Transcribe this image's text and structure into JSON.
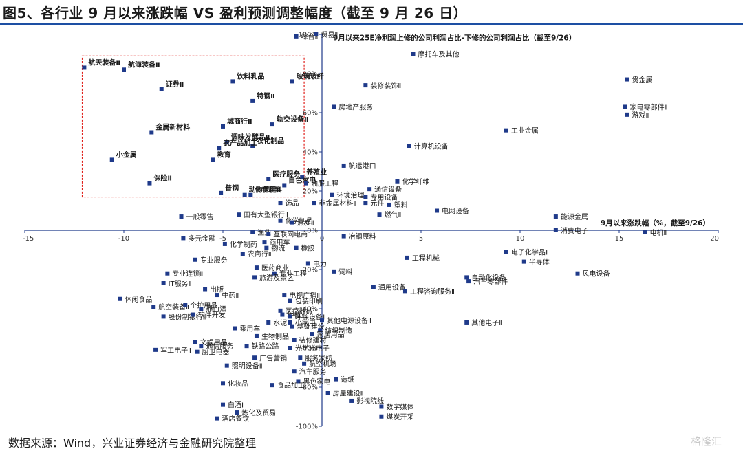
{
  "title": "图5、各行业 9 月以来涨跌幅 VS 盈利预测调整幅度（截至 9 月 26 日）",
  "source": "数据来源：Wind，兴业证券经济与金融研究院整理",
  "watermark": "格隆汇",
  "colors": {
    "marker": "#1f3a8a",
    "axis": "#1f3a8a",
    "highlight_box": "#e0201b",
    "title_rule": "#1d4fa3"
  },
  "chart_data": {
    "type": "scatter",
    "xlabel": "9月以来涨跌幅（%，截至9/26）",
    "ylabel": "9月以来25E净利润上修的公司利润占比-下修的公司利润占比（截至9/26）",
    "xlim": [
      -15,
      20
    ],
    "ylim": [
      -100,
      100
    ],
    "x_ticks": [
      "-15",
      "-10",
      "-5",
      "0",
      "5",
      "10",
      "15",
      "20"
    ],
    "y_ticks": [
      "100%",
      "80%",
      "60%",
      "40%",
      "20%",
      "0%",
      "-20%",
      "-40%",
      "-60%",
      "-80%",
      "-100%"
    ],
    "highlight_box": {
      "x": [
        -12.1,
        -0.9
      ],
      "y": [
        17,
        89
      ]
    },
    "points": [
      {
        "name": "航天装备Ⅱ",
        "x": -12.0,
        "y": 83,
        "bold": true
      },
      {
        "name": "航海装备Ⅱ",
        "x": -10.0,
        "y": 82,
        "bold": true
      },
      {
        "name": "证券Ⅱ",
        "x": -8.1,
        "y": 72,
        "bold": true
      },
      {
        "name": "饮料乳品",
        "x": -4.5,
        "y": 76,
        "bold": true
      },
      {
        "name": "玻璃玻纤",
        "x": -1.5,
        "y": 76,
        "bold": true
      },
      {
        "name": "特钢Ⅱ",
        "x": -3.5,
        "y": 66,
        "bold": true
      },
      {
        "name": "城商行Ⅱ",
        "x": -5.0,
        "y": 53,
        "bold": true
      },
      {
        "name": "轨交设备Ⅱ",
        "x": -2.5,
        "y": 54,
        "bold": true
      },
      {
        "name": "金属新材料",
        "x": -8.6,
        "y": 50,
        "bold": true
      },
      {
        "name": "调味发酵品Ⅱ",
        "x": -4.8,
        "y": 45,
        "bold": true
      },
      {
        "name": "农化制品",
        "x": -3.5,
        "y": 43,
        "bold": true
      },
      {
        "name": "农产品加工",
        "x": -5.2,
        "y": 42,
        "bold": true
      },
      {
        "name": "小金属",
        "x": -10.6,
        "y": 36,
        "bold": true
      },
      {
        "name": "教育",
        "x": -5.5,
        "y": 36,
        "bold": true
      },
      {
        "name": "医疗服务",
        "x": -2.7,
        "y": 26,
        "bold": true
      },
      {
        "name": "养殖业",
        "x": -1.0,
        "y": 27,
        "bold": true
      },
      {
        "name": "白色家电",
        "x": -1.9,
        "y": 23,
        "bold": true
      },
      {
        "name": "保险Ⅱ",
        "x": -8.7,
        "y": 24,
        "bold": true
      },
      {
        "name": "动物保健Ⅱ",
        "x": -3.9,
        "y": 18,
        "bold": true
      },
      {
        "name": "普钢",
        "x": -5.1,
        "y": 19,
        "bold": true
      },
      {
        "name": "化学原料",
        "x": -3.6,
        "y": 18,
        "bold": true
      },
      {
        "name": "综合Ⅱ",
        "x": -1.3,
        "y": 99,
        "bold": false
      },
      {
        "name": "贸易Ⅱ",
        "x": -0.3,
        "y": 100,
        "bold": false
      },
      {
        "name": "摩托车及其他",
        "x": 4.6,
        "y": 90,
        "bold": false
      },
      {
        "name": "贵金属",
        "x": 15.4,
        "y": 77,
        "bold": false
      },
      {
        "name": "装修装饰Ⅱ",
        "x": 2.2,
        "y": 74,
        "bold": false
      },
      {
        "name": "房地产服务",
        "x": 0.6,
        "y": 63,
        "bold": false
      },
      {
        "name": "家电零部件Ⅱ",
        "x": 15.3,
        "y": 63,
        "bold": false
      },
      {
        "name": "游戏Ⅱ",
        "x": 15.4,
        "y": 59,
        "bold": false
      },
      {
        "name": "工业金属",
        "x": 9.3,
        "y": 51,
        "bold": false
      },
      {
        "name": "计算机设备",
        "x": 4.4,
        "y": 43,
        "bold": false
      },
      {
        "name": "航运港口",
        "x": 1.1,
        "y": 33,
        "bold": false
      },
      {
        "name": "化学纤维",
        "x": 3.8,
        "y": 25,
        "bold": false
      },
      {
        "name": "油服工程",
        "x": -0.8,
        "y": 24,
        "bold": false
      },
      {
        "name": "通信设备",
        "x": 2.4,
        "y": 21,
        "bold": false
      },
      {
        "name": "环境治理",
        "x": 0.5,
        "y": 18,
        "bold": false
      },
      {
        "name": "专用设备",
        "x": 2.2,
        "y": 17,
        "bold": false
      },
      {
        "name": "饰品",
        "x": -2.1,
        "y": 14,
        "bold": false
      },
      {
        "name": "塑料",
        "x": 3.4,
        "y": 13,
        "bold": false
      },
      {
        "name": "元件",
        "x": 2.2,
        "y": 14,
        "bold": false
      },
      {
        "name": "非金属材料Ⅱ",
        "x": -0.4,
        "y": 14,
        "bold": false
      },
      {
        "name": "电网设备",
        "x": 5.8,
        "y": 10,
        "bold": false
      },
      {
        "name": "燃气Ⅱ",
        "x": 2.9,
        "y": 8,
        "bold": false
      },
      {
        "name": "能源金属",
        "x": 11.8,
        "y": 7,
        "bold": false
      },
      {
        "name": "一般零售",
        "x": -7.1,
        "y": 7,
        "bold": false
      },
      {
        "name": "国有大型银行Ⅱ",
        "x": -4.2,
        "y": 8,
        "bold": false
      },
      {
        "name": "化学制品",
        "x": -2.1,
        "y": 5,
        "bold": false
      },
      {
        "name": "焦炭Ⅱ",
        "x": -1.5,
        "y": 4,
        "bold": false
      },
      {
        "name": "消费电子",
        "x": 11.8,
        "y": 0,
        "bold": false
      },
      {
        "name": "电机Ⅱ",
        "x": 16.3,
        "y": -1,
        "bold": false
      },
      {
        "name": "渔业",
        "x": -3.5,
        "y": -1,
        "bold": false
      },
      {
        "name": "互联网电商",
        "x": -2.7,
        "y": -2,
        "bold": false
      },
      {
        "name": "冶钢原料",
        "x": 1.1,
        "y": -3,
        "bold": false
      },
      {
        "name": "多元金融",
        "x": -7.0,
        "y": -4,
        "bold": false
      },
      {
        "name": "商用车",
        "x": -2.9,
        "y": -6,
        "bold": false
      },
      {
        "name": "化学制药",
        "x": -4.9,
        "y": -7,
        "bold": false
      },
      {
        "name": "物流",
        "x": -2.8,
        "y": -9,
        "bold": false
      },
      {
        "name": "橡胶",
        "x": -1.3,
        "y": -9,
        "bold": false
      },
      {
        "name": "农商行Ⅱ",
        "x": -4.0,
        "y": -12,
        "bold": false
      },
      {
        "name": "工程机械",
        "x": 4.3,
        "y": -14,
        "bold": false
      },
      {
        "name": "电子化学品Ⅱ",
        "x": 9.3,
        "y": -11,
        "bold": false
      },
      {
        "name": "专业服务",
        "x": -6.4,
        "y": -15,
        "bold": false
      },
      {
        "name": "电力",
        "x": -0.7,
        "y": -17,
        "bold": false
      },
      {
        "name": "半导体",
        "x": 10.2,
        "y": -16,
        "bold": false
      },
      {
        "name": "医药商业",
        "x": -3.3,
        "y": -19,
        "bold": false
      },
      {
        "name": "饲料",
        "x": 0.6,
        "y": -21,
        "bold": false
      },
      {
        "name": "专业连锁Ⅱ",
        "x": -7.8,
        "y": -22,
        "bold": false
      },
      {
        "name": "专业工程",
        "x": -2.4,
        "y": -22,
        "bold": false
      },
      {
        "name": "旅游及景区",
        "x": -3.4,
        "y": -24,
        "bold": false
      },
      {
        "name": "自动化设备",
        "x": 7.3,
        "y": -24,
        "bold": false
      },
      {
        "name": "汽车零部件",
        "x": 7.4,
        "y": -26,
        "bold": false
      },
      {
        "name": "风电设备",
        "x": 12.9,
        "y": -22,
        "bold": false
      },
      {
        "name": "IT服务Ⅱ",
        "x": -8.0,
        "y": -27,
        "bold": false
      },
      {
        "name": "通用设备",
        "x": 2.6,
        "y": -29,
        "bold": false
      },
      {
        "name": "出版",
        "x": -5.9,
        "y": -30,
        "bold": false
      },
      {
        "name": "中药Ⅱ",
        "x": -5.3,
        "y": -33,
        "bold": false
      },
      {
        "name": "工程咨询服务Ⅱ",
        "x": 4.2,
        "y": -31,
        "bold": false
      },
      {
        "name": "电视广播Ⅱ",
        "x": -1.9,
        "y": -33,
        "bold": false
      },
      {
        "name": "休闲食品",
        "x": -10.2,
        "y": -35,
        "bold": false
      },
      {
        "name": "包装印刷",
        "x": -1.6,
        "y": -36,
        "bold": false
      },
      {
        "name": "航空装备Ⅱ",
        "x": -8.5,
        "y": -39,
        "bold": false
      },
      {
        "name": "个护用品",
        "x": -6.9,
        "y": -38,
        "bold": false
      },
      {
        "name": "非白酒",
        "x": -6.1,
        "y": -40,
        "bold": false
      },
      {
        "name": "医疗器械",
        "x": -2.1,
        "y": -41,
        "bold": false
      },
      {
        "name": "种植业",
        "x": -2.0,
        "y": -43,
        "bold": false
      },
      {
        "name": "环保设备Ⅱ",
        "x": -1.6,
        "y": -44,
        "bold": false
      },
      {
        "name": "股份制银行Ⅱ",
        "x": -8.0,
        "y": -44,
        "bold": false
      },
      {
        "name": "软件开发",
        "x": -6.5,
        "y": -43,
        "bold": false
      },
      {
        "name": "水泥",
        "x": -2.7,
        "y": -47,
        "bold": false
      },
      {
        "name": "小家电",
        "x": -1.6,
        "y": -47,
        "bold": false
      },
      {
        "name": "其他电源设备Ⅱ",
        "x": 0.0,
        "y": -46,
        "bold": false
      },
      {
        "name": "其他电子Ⅱ",
        "x": 7.3,
        "y": -47,
        "bold": false
      },
      {
        "name": "基础建设",
        "x": -1.5,
        "y": -49,
        "bold": false
      },
      {
        "name": "纺织制造",
        "x": -0.1,
        "y": -51,
        "bold": false
      },
      {
        "name": "乘用车",
        "x": -4.4,
        "y": -50,
        "bold": false
      },
      {
        "name": "家居用品",
        "x": -0.5,
        "y": -53,
        "bold": false
      },
      {
        "name": "生物制品",
        "x": -3.3,
        "y": -54,
        "bold": false
      },
      {
        "name": "装修建材",
        "x": -1.4,
        "y": -56,
        "bold": false
      },
      {
        "name": "文娱用品",
        "x": -6.4,
        "y": -57,
        "bold": false
      },
      {
        "name": "通信服务",
        "x": -6.1,
        "y": -59,
        "bold": false
      },
      {
        "name": "铁路公路",
        "x": -3.8,
        "y": -59,
        "bold": false
      },
      {
        "name": "光学光电子",
        "x": -1.6,
        "y": -60,
        "bold": false
      },
      {
        "name": "军工电子Ⅱ",
        "x": -8.4,
        "y": -61,
        "bold": false
      },
      {
        "name": "厨卫电器",
        "x": -6.3,
        "y": -62,
        "bold": false
      },
      {
        "name": "广告营销",
        "x": -3.4,
        "y": -65,
        "bold": false
      },
      {
        "name": "服务家纺",
        "x": -1.1,
        "y": -65,
        "bold": false
      },
      {
        "name": "照明设备Ⅱ",
        "x": -4.8,
        "y": -69,
        "bold": false
      },
      {
        "name": "航空机场",
        "x": -0.9,
        "y": -68,
        "bold": false
      },
      {
        "name": "汽车服务",
        "x": -1.4,
        "y": -72,
        "bold": false
      },
      {
        "name": "造纸",
        "x": 0.7,
        "y": -76,
        "bold": false
      },
      {
        "name": "化妆品",
        "x": -5.0,
        "y": -78,
        "bold": false
      },
      {
        "name": "黑色家电",
        "x": -1.2,
        "y": -77,
        "bold": false
      },
      {
        "name": "食品加工",
        "x": -2.5,
        "y": -79,
        "bold": false
      },
      {
        "name": "房屋建设Ⅱ",
        "x": 0.3,
        "y": -83,
        "bold": false
      },
      {
        "name": "白酒Ⅱ",
        "x": -5.0,
        "y": -89,
        "bold": false
      },
      {
        "name": "影视院线",
        "x": 1.5,
        "y": -87,
        "bold": false
      },
      {
        "name": "数字媒体",
        "x": 3.0,
        "y": -90,
        "bold": false
      },
      {
        "name": "炼化及贸易",
        "x": -4.3,
        "y": -93,
        "bold": false
      },
      {
        "name": "煤炭开采",
        "x": 3.0,
        "y": -95,
        "bold": false
      },
      {
        "name": "酒店餐饮",
        "x": -5.3,
        "y": -96,
        "bold": false
      }
    ]
  }
}
